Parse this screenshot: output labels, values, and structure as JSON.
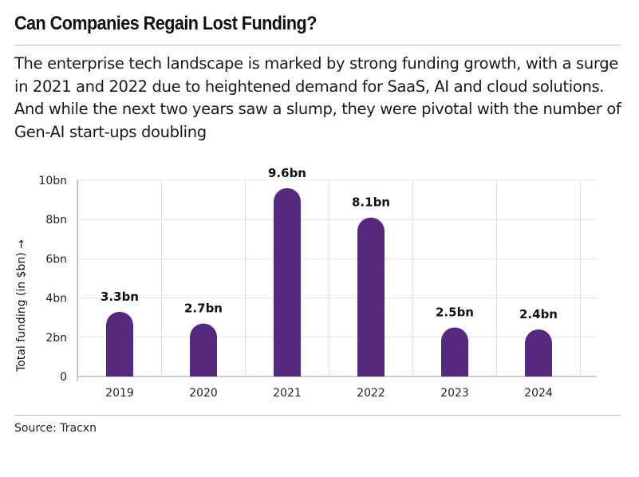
{
  "header": {
    "title": "Can Companies Regain Lost Funding?",
    "subtitle": "The enterprise tech landscape is marked by strong funding growth, with a surge in 2021 and 2022 due to heightened demand for SaaS, AI and cloud solutions. And while the next two years saw a slump, they were pivotal with the number of Gen-AI start-ups doubling"
  },
  "footer": {
    "source": "Source: Tracxn"
  },
  "chart_data": {
    "type": "bar",
    "categories": [
      "2019",
      "2020",
      "2021",
      "2022",
      "2023",
      "2024"
    ],
    "values": [
      3.3,
      2.7,
      9.6,
      8.1,
      2.5,
      2.4
    ],
    "data_labels": [
      "3.3bn",
      "2.7bn",
      "9.6bn",
      "8.1bn",
      "2.5bn",
      "2.4bn"
    ],
    "ylabel": "Total funding (in $bn) →",
    "xlabel": "",
    "yticks": [
      0,
      2,
      4,
      6,
      8,
      10
    ],
    "ytick_labels": [
      "0",
      "2bn",
      "4bn",
      "6bn",
      "8bn",
      "10bn"
    ],
    "ylim": [
      0,
      10
    ],
    "grid": true,
    "bar_color": "#552a7e"
  }
}
